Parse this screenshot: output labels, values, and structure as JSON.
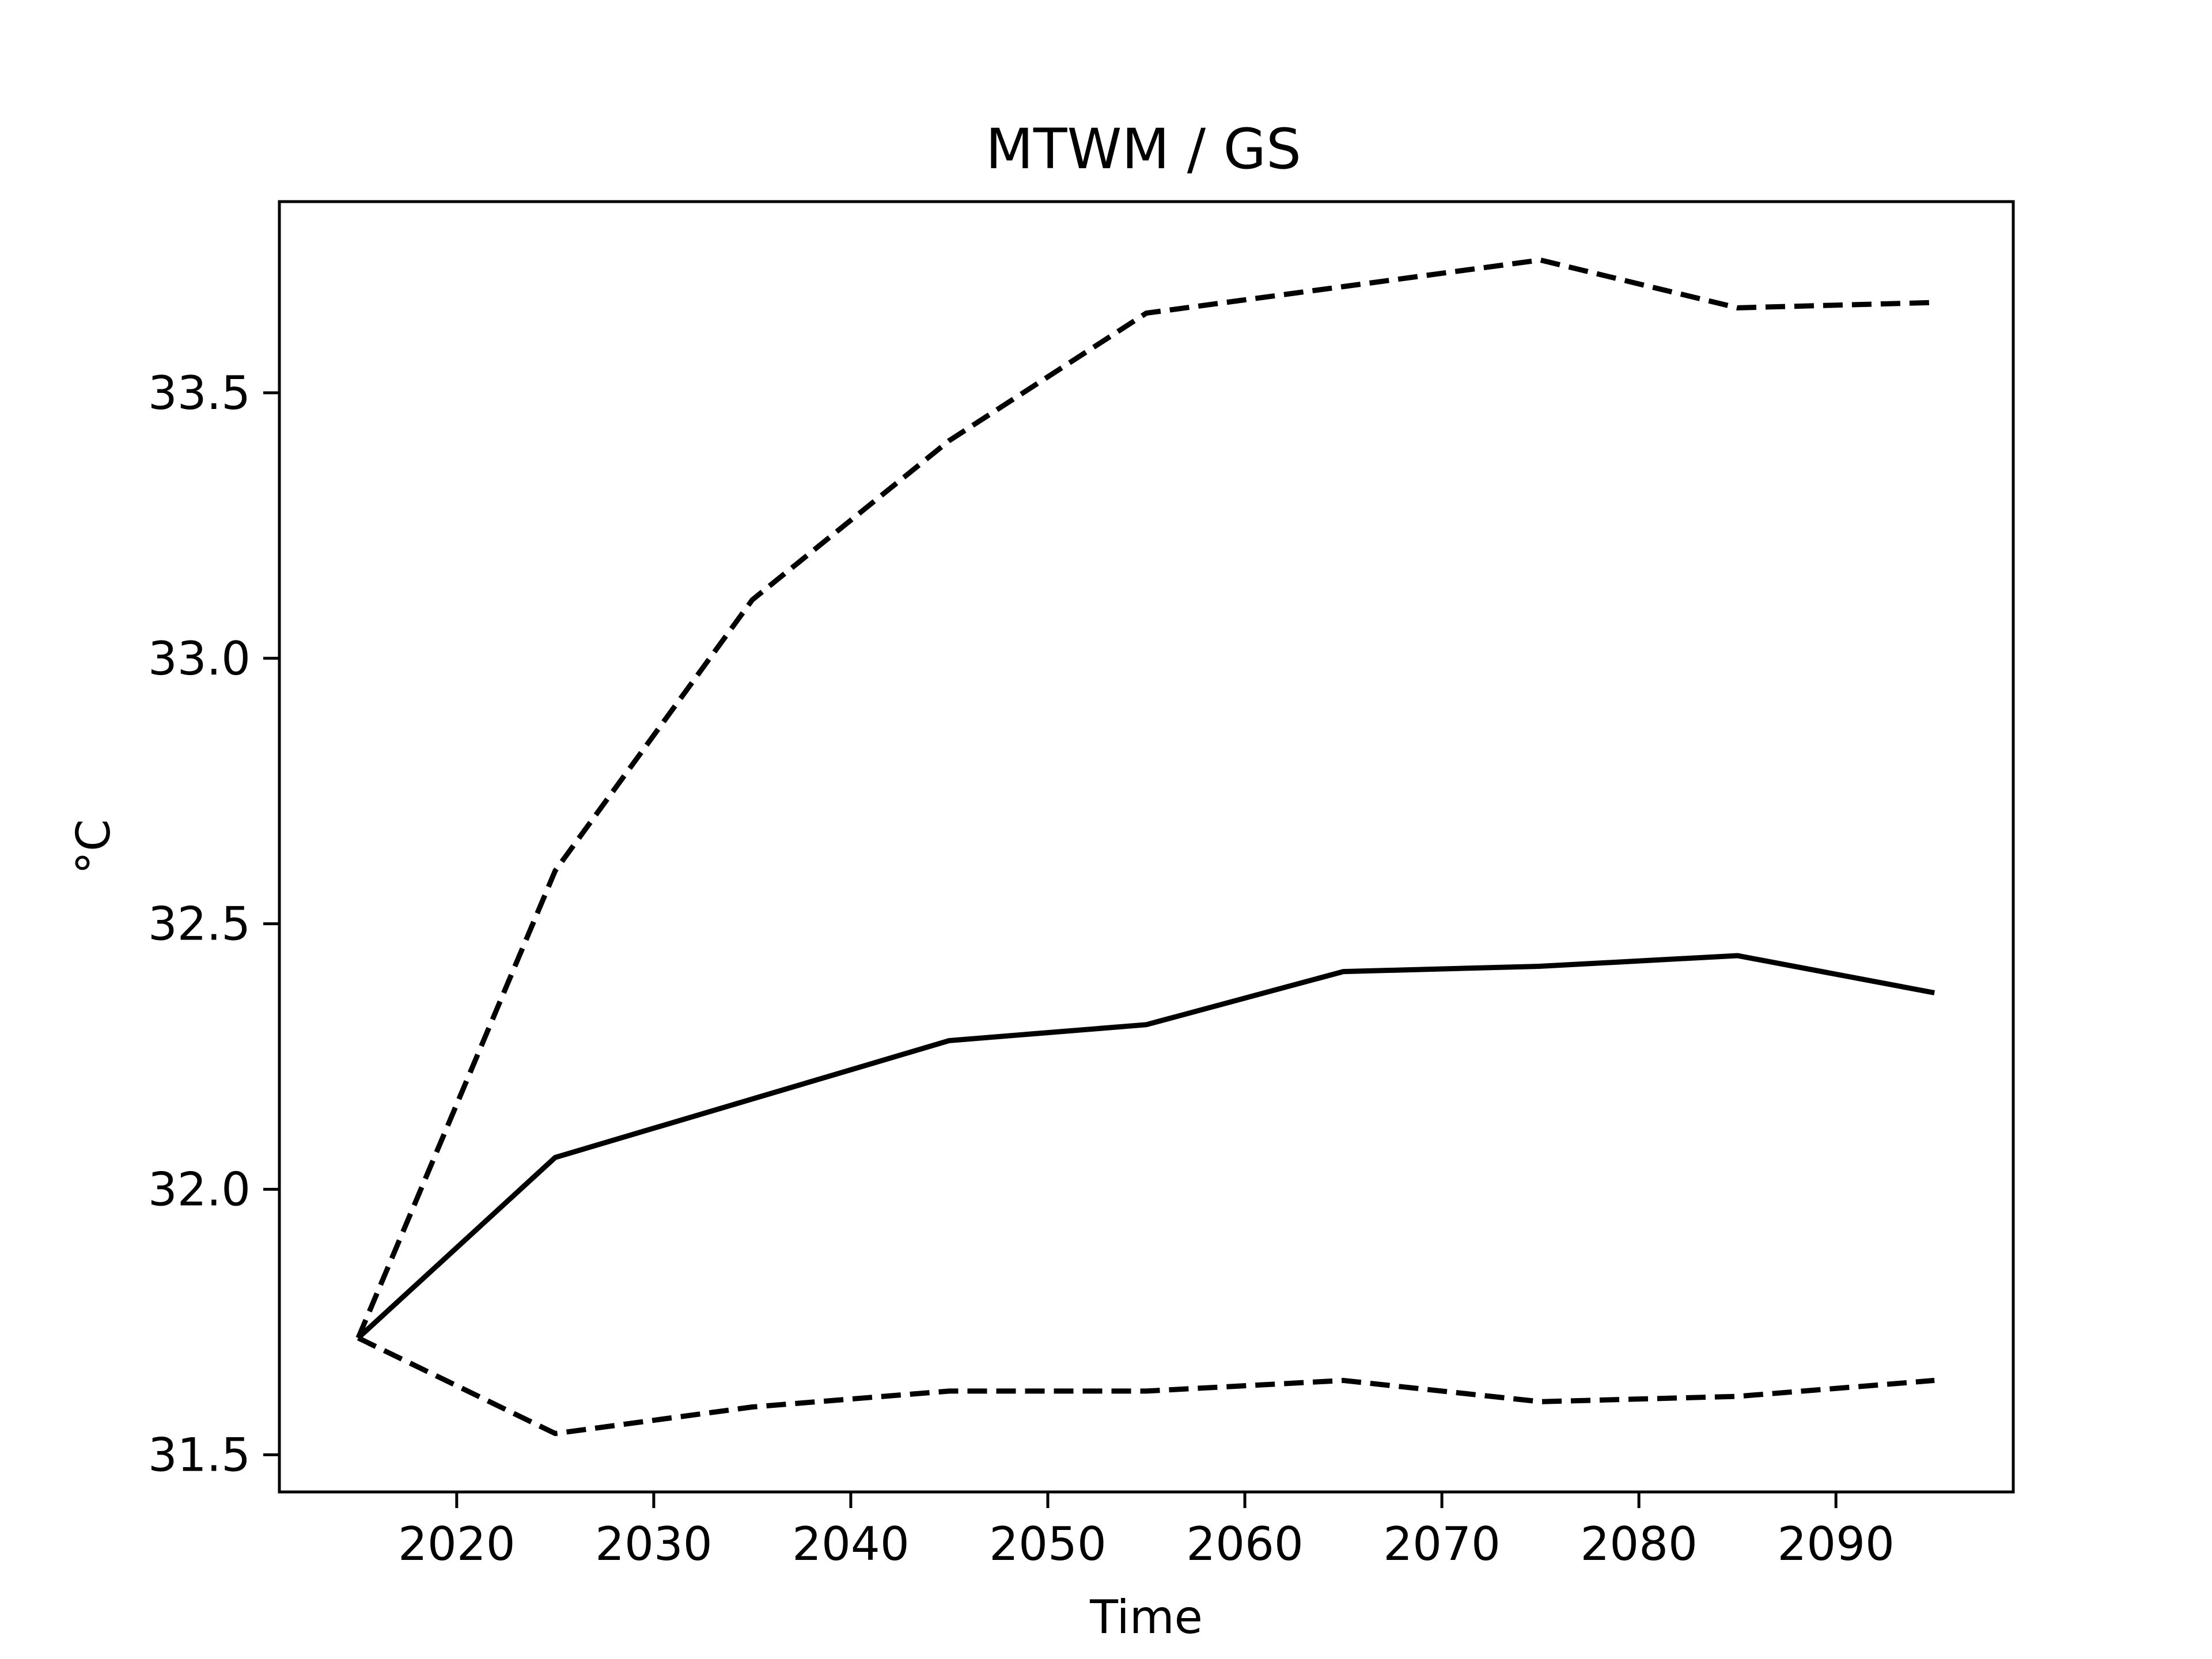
{
  "chart_data": {
    "type": "line",
    "title": "MTWM / GS",
    "xlabel": "Time",
    "ylabel": "°C",
    "xlim": [
      2011,
      2099
    ],
    "ylim": [
      31.43,
      33.86
    ],
    "xticks": [
      2020,
      2030,
      2040,
      2050,
      2060,
      2070,
      2080,
      2090
    ],
    "yticks": [
      31.5,
      32.0,
      32.5,
      33.0,
      33.5
    ],
    "ytick_labels": [
      "31.5",
      "32.0",
      "32.5",
      "33.0",
      "33.5"
    ],
    "x": [
      2015,
      2025,
      2035,
      2045,
      2055,
      2065,
      2075,
      2085,
      2095
    ],
    "series": [
      {
        "style": "solid",
        "color": "#000000",
        "values": [
          31.72,
          32.06,
          32.17,
          32.28,
          32.31,
          32.41,
          32.42,
          32.44,
          32.37
        ]
      },
      {
        "style": "dashed",
        "color": "#000000",
        "values": [
          31.72,
          32.6,
          33.11,
          33.41,
          33.65,
          33.7,
          33.75,
          33.66,
          33.67
        ]
      },
      {
        "style": "dashed",
        "color": "#000000",
        "values": [
          31.72,
          31.54,
          31.59,
          31.62,
          31.62,
          31.64,
          31.6,
          31.61,
          31.64
        ]
      }
    ],
    "grid": false,
    "legend": false
  }
}
